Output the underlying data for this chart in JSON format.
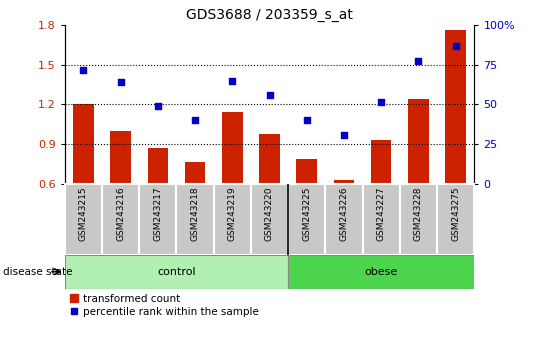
{
  "title": "GDS3688 / 203359_s_at",
  "samples": [
    "GSM243215",
    "GSM243216",
    "GSM243217",
    "GSM243218",
    "GSM243219",
    "GSM243220",
    "GSM243225",
    "GSM243226",
    "GSM243227",
    "GSM243228",
    "GSM243275"
  ],
  "bar_values": [
    1.2,
    1.0,
    0.87,
    0.77,
    1.14,
    0.98,
    0.79,
    0.63,
    0.93,
    1.24,
    1.76
  ],
  "scatter_values": [
    1.46,
    1.37,
    1.19,
    1.08,
    1.38,
    1.27,
    1.08,
    0.97,
    1.22,
    1.53,
    1.64
  ],
  "bar_color": "#CC2200",
  "scatter_color": "#0000CC",
  "ylim": [
    0.6,
    1.8
  ],
  "yticks_left": [
    0.6,
    0.9,
    1.2,
    1.5,
    1.8
  ],
  "yticks_right": [
    0,
    25,
    50,
    75,
    100
  ],
  "ytick_labels_right": [
    "0",
    "25",
    "50",
    "75",
    "100%"
  ],
  "hlines": [
    0.9,
    1.2,
    1.5
  ],
  "n_control": 6,
  "n_obese": 5,
  "control_label": "control",
  "obese_label": "obese",
  "disease_state_label": "disease state",
  "legend_bar_label": "transformed count",
  "legend_scatter_label": "percentile rank within the sample",
  "bar_width": 0.55,
  "tick_area_color": "#c8c8c8",
  "control_color": "#b2f0b2",
  "obese_color": "#4cd44c"
}
